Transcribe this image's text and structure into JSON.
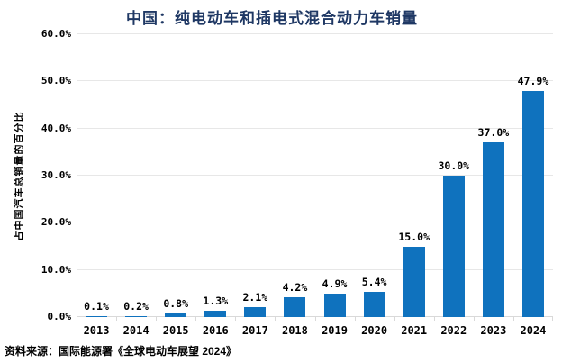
{
  "title": "中国：纯电动车和插电式混合动力车销量",
  "source_note": "资料来源：国际能源署《全球电动车展望 2024》",
  "chart_data": {
    "type": "bar",
    "title": "中国：纯电动车和插电式混合动力车销量",
    "categories": [
      "2013",
      "2014",
      "2015",
      "2016",
      "2017",
      "2018",
      "2019",
      "2020",
      "2021",
      "2022",
      "2023",
      "2024"
    ],
    "values": [
      0.1,
      0.2,
      0.8,
      1.3,
      2.1,
      4.2,
      4.9,
      5.4,
      15.0,
      30.0,
      37.0,
      47.9
    ],
    "value_labels": [
      "0.1%",
      "0.2%",
      "0.8%",
      "1.3%",
      "2.1%",
      "4.2%",
      "4.9%",
      "5.4%",
      "15.0%",
      "30.0%",
      "37.0%",
      "47.9%"
    ],
    "xlabel": "",
    "ylabel": "占中国汽车总销量的百分比",
    "ylim": [
      0,
      60
    ],
    "ytick_step": 10,
    "ytick_labels": [
      "0.0%",
      "10.0%",
      "20.0%",
      "30.0%",
      "40.0%",
      "50.0%",
      "60.0%"
    ],
    "grid": true,
    "legend": false
  },
  "colors": {
    "title": "#1F3864",
    "bar": "#0F72BE",
    "gridline": "#E7E7E7",
    "axis_line": "#D9D9D9",
    "text": "#000000",
    "background": "#FFFFFF"
  }
}
